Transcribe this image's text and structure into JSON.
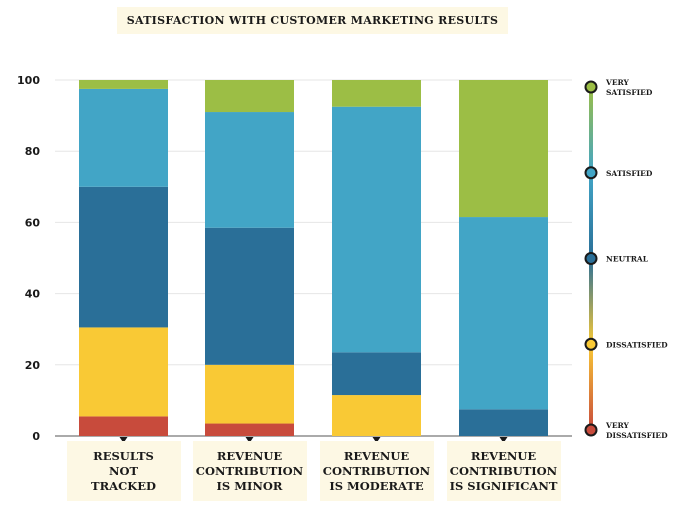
{
  "chart_data": {
    "type": "bar",
    "stacked": true,
    "title": "SATISFACTION WITH CUSTOMER MARKETING RESULTS",
    "categories": [
      "RESULTS\nNOT\nTRACKED",
      "REVENUE\nCONTRIBUTION\nIS MINOR",
      "REVENUE\nCONTRIBUTION\nIS MODERATE",
      "REVENUE\nCONTRIBUTION\nIS SIGNIFICANT"
    ],
    "ylim": [
      0,
      100
    ],
    "yticks": [
      "0",
      "20",
      "40",
      "60",
      "80",
      "100"
    ],
    "grid": true,
    "legend_position": "right",
    "series": [
      {
        "name": "VERY DISSATISFIED",
        "color": "#c84b3c",
        "values": [
          5.5,
          3.5,
          0,
          0
        ]
      },
      {
        "name": "DISSATISFIED",
        "color": "#f9c935",
        "values": [
          25,
          16.5,
          11.5,
          0
        ]
      },
      {
        "name": "NEUTRAL",
        "color": "#2a6f98",
        "values": [
          39.5,
          38.5,
          12,
          7.5
        ]
      },
      {
        "name": "SATISFIED",
        "color": "#42a5c6",
        "values": [
          27.5,
          32.5,
          69,
          54
        ]
      },
      {
        "name": "VERY SATISFIED",
        "color": "#9cbe45",
        "values": [
          2.5,
          9,
          7.5,
          38.5
        ]
      }
    ]
  },
  "legend": {
    "items": [
      {
        "label": "VERY\nSATISFIED",
        "color": "#9cbe45"
      },
      {
        "label": "SATISFIED",
        "color": "#42a5c6"
      },
      {
        "label": "NEUTRAL",
        "color": "#2a6f98"
      },
      {
        "label": "DISSATISFIED",
        "color": "#f9c935"
      },
      {
        "label": "VERY\nDISSATISFIED",
        "color": "#c84b3c"
      }
    ]
  }
}
